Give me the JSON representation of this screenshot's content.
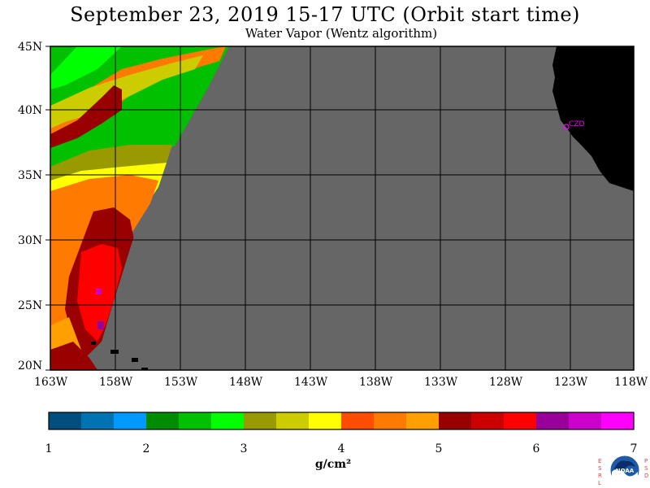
{
  "title": "September 23, 2019  15-17 UTC  (Orbit start time)",
  "subtitle": "Water Vapor (Wentz algorithm)",
  "map": {
    "lat_labels": [
      "45N",
      "40N",
      "35N",
      "30N",
      "25N",
      "20N"
    ],
    "lon_labels": [
      "163W",
      "158W",
      "153W",
      "148W",
      "143W",
      "138W",
      "133W",
      "128W",
      "123W",
      "118W"
    ],
    "station": {
      "name": "CZD",
      "color": "#ff00ff"
    },
    "colors": {
      "no_data": "#666666",
      "land": "#000000",
      "grid": "#000000"
    }
  },
  "colorbar": {
    "colors": [
      "#004d80",
      "#0073b3",
      "#0099ff",
      "#008c00",
      "#00c000",
      "#00ff00",
      "#999900",
      "#cccc00",
      "#ffff00",
      "#ff4d00",
      "#ff7a00",
      "#ffa000",
      "#990000",
      "#cc0000",
      "#ff0000",
      "#990099",
      "#cc00cc",
      "#ff00ff"
    ],
    "tick_labels": [
      "1",
      "2",
      "3",
      "4",
      "5",
      "6",
      "7"
    ],
    "units": "g/cm²"
  },
  "footer": {
    "esrl_text": "ESRL",
    "psd_text": "PSD",
    "logo_text": "NOAA"
  }
}
